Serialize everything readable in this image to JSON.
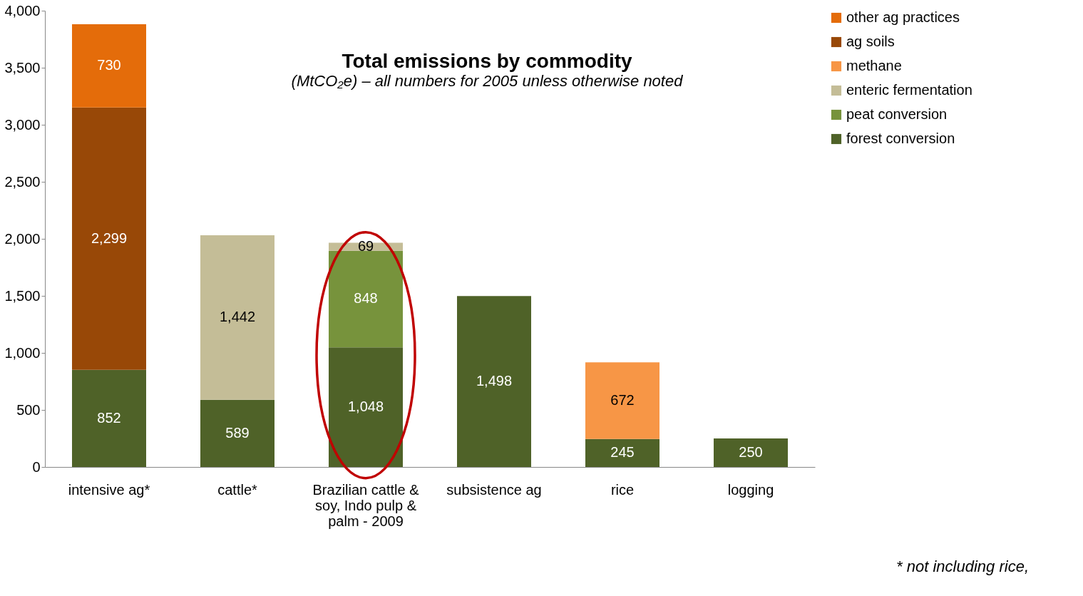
{
  "chart_data": {
    "type": "bar",
    "stacked": true,
    "title": "Total emissions by commodity",
    "subtitle": "(MtCO₂e) – all numbers for 2005 unless otherwise noted",
    "categories": [
      "intensive ag*",
      "cattle*",
      "Brazilian cattle & soy, Indo pulp & palm - 2009",
      "subsistence ag",
      "rice",
      "logging"
    ],
    "series": [
      {
        "name": "forest conversion",
        "color": "#4f6228",
        "values": [
          852,
          589,
          1048,
          1498,
          245,
          250
        ],
        "value_labels": [
          "852",
          "589",
          "1,048",
          "1,498",
          "245",
          "250"
        ]
      },
      {
        "name": "peat conversion",
        "color": "#77933c",
        "values": [
          null,
          null,
          848,
          null,
          null,
          null
        ],
        "value_labels": [
          null,
          null,
          "848",
          null,
          null,
          null
        ]
      },
      {
        "name": "enteric fermentation",
        "color": "#c4bd97",
        "values": [
          null,
          1442,
          69,
          null,
          null,
          null
        ],
        "value_labels": [
          null,
          "1,442",
          "69",
          null,
          null,
          null
        ]
      },
      {
        "name": "methane",
        "color": "#f79646",
        "values": [
          null,
          null,
          null,
          null,
          672,
          null
        ],
        "value_labels": [
          null,
          null,
          null,
          null,
          "672",
          null
        ]
      },
      {
        "name": "ag soils",
        "color": "#984807",
        "values": [
          2299,
          null,
          null,
          null,
          null,
          null
        ],
        "value_labels": [
          "2,299",
          null,
          null,
          null,
          null,
          null
        ]
      },
      {
        "name": "other ag practices",
        "color": "#e46c0a",
        "values": [
          730,
          null,
          null,
          null,
          null,
          null
        ],
        "value_labels": [
          "730",
          null,
          null,
          null,
          null,
          null
        ]
      }
    ],
    "ylim": [
      0,
      4000
    ],
    "yticks": [
      0,
      {
        "value": 500,
        "label": "500"
      },
      {
        "value": 1000,
        "label": "1,000"
      },
      {
        "value": 1500,
        "label": "1,500"
      },
      {
        "value": 2000,
        "label": "2,000"
      },
      {
        "value": 2500,
        "label": "2,500"
      },
      {
        "value": 3000,
        "label": "3,000"
      },
      {
        "value": 3500,
        "label": "3,500"
      },
      {
        "value": 4000,
        "label": "4,000"
      }
    ],
    "legend": "right",
    "grid": false,
    "annotations": [
      "* not including rice,"
    ]
  }
}
